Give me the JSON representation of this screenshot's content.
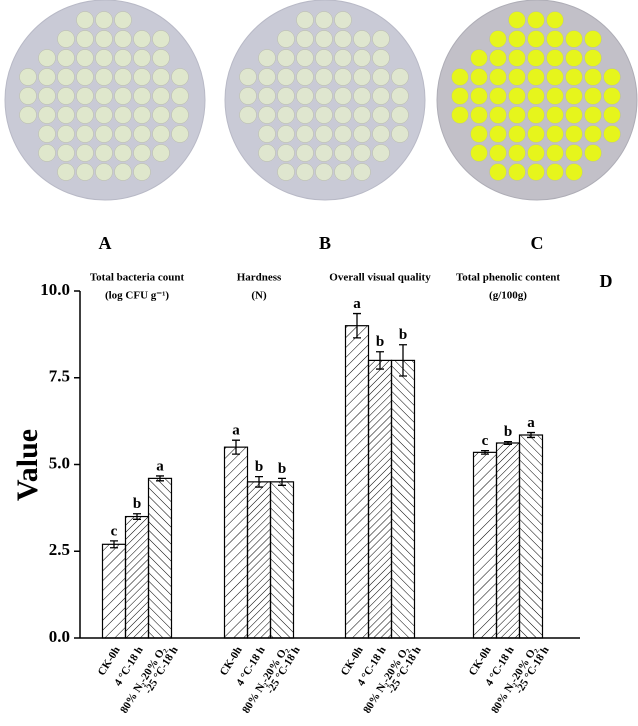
{
  "chart_data": {
    "type": "bar",
    "panel_labels": [
      "A",
      "B",
      "C",
      "D"
    ],
    "y_label": "Value",
    "categories": [
      [
        "Total bacteria count",
        "(log CFU g⁻¹)"
      ],
      [
        "Hardness",
        "(N)"
      ],
      [
        "Overall visual quality"
      ],
      [
        "Total phenolic content",
        "(g/100g)"
      ]
    ],
    "series": [
      {
        "name": "CK-0h",
        "color": "#000000",
        "values": [
          2.7,
          5.5,
          9.0,
          5.35
        ],
        "errors": [
          0.1,
          0.2,
          0.35,
          0.05
        ],
        "letters": [
          "c",
          "a",
          "a",
          "c"
        ]
      },
      {
        "name": "4 °C-18 h",
        "color": "#000000",
        "values": [
          3.5,
          4.5,
          8.0,
          5.62
        ],
        "errors": [
          0.08,
          0.15,
          0.25,
          0.04
        ],
        "letters": [
          "b",
          "b",
          "b",
          "b"
        ]
      },
      {
        "name": [
          "80% N₂-20% O₂",
          "-25 °C-18 h"
        ],
        "color": "#000000",
        "values": [
          4.6,
          4.5,
          8.0,
          5.85
        ],
        "errors": [
          0.07,
          0.1,
          0.45,
          0.07
        ],
        "letters": [
          "a",
          "b",
          "b",
          "a"
        ]
      }
    ],
    "ylim": [
      0,
      10
    ],
    "yticks": [
      {
        "value": 0,
        "label": "0.0"
      },
      2.5,
      {
        "value": 5,
        "label": "5.0"
      },
      7.5,
      {
        "value": 10,
        "label": "10.0"
      }
    ]
  }
}
